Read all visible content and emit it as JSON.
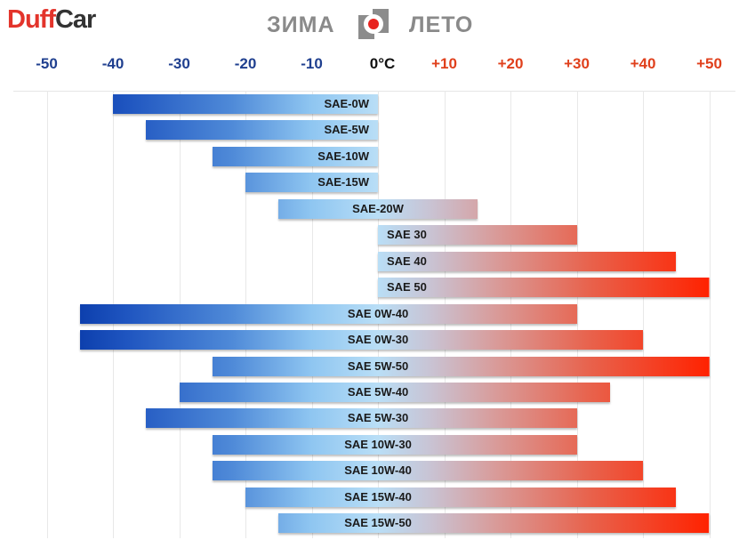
{
  "logo": {
    "part1": "Duff",
    "part2": "Car"
  },
  "header": {
    "winter": "ЗИМА",
    "summer": "ЛЕТО",
    "icon": "winter-summer-icon"
  },
  "colors": {
    "cold": "#0033a0",
    "neutral": "#b8dcf5",
    "hot": "#ff2200",
    "cold_text": "#1f3f8f",
    "hot_text": "#e0401c"
  },
  "chart_data": {
    "type": "bar",
    "orientation": "horizontal-range",
    "xlim": [
      -50,
      50
    ],
    "grid": true,
    "ticks": [
      {
        "value": -50,
        "label": "-50"
      },
      {
        "value": -40,
        "label": "-40"
      },
      {
        "value": -30,
        "label": "-30"
      },
      {
        "value": -20,
        "label": "-20"
      },
      {
        "value": -10,
        "label": "-10"
      },
      {
        "value": 0,
        "label": "0°C"
      },
      {
        "value": 10,
        "label": "+10"
      },
      {
        "value": 20,
        "label": "+20"
      },
      {
        "value": 30,
        "label": "+30"
      },
      {
        "value": 40,
        "label": "+40"
      },
      {
        "value": 50,
        "label": "+50"
      }
    ],
    "bars": [
      {
        "label": "SAE-0W",
        "min": -40,
        "max": 0
      },
      {
        "label": "SAE-5W",
        "min": -35,
        "max": 0
      },
      {
        "label": "SAE-10W",
        "min": -25,
        "max": 0
      },
      {
        "label": "SAE-15W",
        "min": -20,
        "max": 0
      },
      {
        "label": "SAE-20W",
        "min": -15,
        "max": 15
      },
      {
        "label": "SAE 30",
        "min": 0,
        "max": 30
      },
      {
        "label": "SAE 40",
        "min": 0,
        "max": 45
      },
      {
        "label": "SAE 50",
        "min": 0,
        "max": 50
      },
      {
        "label": "SAE 0W-40",
        "min": -45,
        "max": 30
      },
      {
        "label": "SAE 0W-30",
        "min": -45,
        "max": 40
      },
      {
        "label": "SAE 5W-50",
        "min": -25,
        "max": 50
      },
      {
        "label": "SAE 5W-40",
        "min": -30,
        "max": 35
      },
      {
        "label": "SAE 5W-30",
        "min": -35,
        "max": 30
      },
      {
        "label": "SAE 10W-30",
        "min": -25,
        "max": 30
      },
      {
        "label": "SAE 10W-40",
        "min": -25,
        "max": 40
      },
      {
        "label": "SAE 15W-40",
        "min": -20,
        "max": 45
      },
      {
        "label": "SAE 15W-50",
        "min": -15,
        "max": 50
      }
    ]
  }
}
